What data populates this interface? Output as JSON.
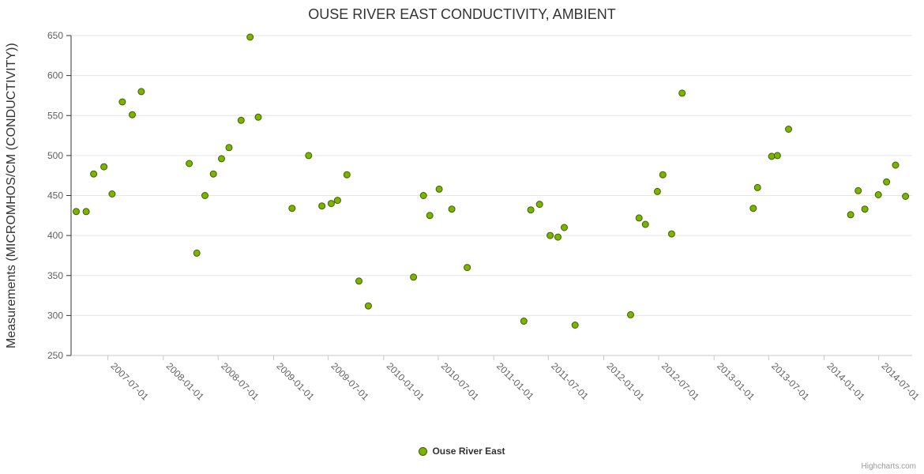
{
  "chart": {
    "title": "OUSE RIVER EAST CONDUCTIVITY, AMBIENT",
    "ylabel": "Measurements (MICROMHOS/CM (CONDUCTIVITY))",
    "legend_label": "Ouse River East",
    "credits": "Highcharts.com"
  },
  "chart_data": {
    "type": "scatter",
    "title": "OUSE RIVER EAST CONDUCTIVITY, AMBIENT",
    "xlabel": "",
    "ylabel": "Measurements (MICROMHOS/CM (CONDUCTIVITY))",
    "series_name": "Ouse River East",
    "legend_position": "bottom-center",
    "grid": true,
    "ylim": [
      250,
      650
    ],
    "y_ticks": [
      250,
      300,
      350,
      400,
      450,
      500,
      550,
      600,
      650
    ],
    "x_range": [
      "2007-03-01",
      "2014-10-20"
    ],
    "x_ticks": [
      "2007-07-01",
      "2008-01-01",
      "2008-07-01",
      "2009-01-01",
      "2009-07-01",
      "2010-01-01",
      "2010-07-01",
      "2011-01-01",
      "2011-07-01",
      "2012-01-01",
      "2012-07-01",
      "2013-01-01",
      "2013-07-01",
      "2014-01-01",
      "2014-07-01"
    ],
    "colors": {
      "marker": "#7cb300",
      "marker_stroke": "#3e6101",
      "grid": "#e6e6e6",
      "axis": "#333333",
      "axis_light": "#c8c8c8",
      "tick_label": "#606060",
      "title": "#333333"
    },
    "points": [
      [
        "2007-03-18",
        430
      ],
      [
        "2007-04-20",
        430
      ],
      [
        "2007-05-15",
        477
      ],
      [
        "2007-06-18",
        486
      ],
      [
        "2007-07-15",
        452
      ],
      [
        "2007-08-18",
        567
      ],
      [
        "2007-09-20",
        551
      ],
      [
        "2007-10-20",
        580
      ],
      [
        "2008-03-27",
        490
      ],
      [
        "2008-04-21",
        378
      ],
      [
        "2008-05-18",
        450
      ],
      [
        "2008-06-15",
        477
      ],
      [
        "2008-07-12",
        496
      ],
      [
        "2008-08-06",
        510
      ],
      [
        "2008-09-15",
        544
      ],
      [
        "2008-10-15",
        648
      ],
      [
        "2008-11-11",
        548
      ],
      [
        "2009-03-03",
        434
      ],
      [
        "2009-04-27",
        500
      ],
      [
        "2009-06-10",
        437
      ],
      [
        "2009-07-11",
        440
      ],
      [
        "2009-08-01",
        444
      ],
      [
        "2009-09-01",
        476
      ],
      [
        "2009-10-11",
        343
      ],
      [
        "2009-11-11",
        312
      ],
      [
        "2010-04-10",
        348
      ],
      [
        "2010-05-13",
        450
      ],
      [
        "2010-06-03",
        425
      ],
      [
        "2010-07-04",
        458
      ],
      [
        "2010-08-15",
        433
      ],
      [
        "2010-10-05",
        360
      ],
      [
        "2011-04-11",
        293
      ],
      [
        "2011-05-04",
        432
      ],
      [
        "2011-06-02",
        439
      ],
      [
        "2011-07-07",
        400
      ],
      [
        "2011-08-02",
        398
      ],
      [
        "2011-08-23",
        410
      ],
      [
        "2011-09-28",
        288
      ],
      [
        "2012-03-30",
        301
      ],
      [
        "2012-04-27",
        422
      ],
      [
        "2012-05-18",
        414
      ],
      [
        "2012-06-27",
        455
      ],
      [
        "2012-07-15",
        476
      ],
      [
        "2012-08-13",
        402
      ],
      [
        "2012-09-17",
        578
      ],
      [
        "2013-05-11",
        434
      ],
      [
        "2013-05-25",
        460
      ],
      [
        "2013-07-11",
        499
      ],
      [
        "2013-07-30",
        500
      ],
      [
        "2013-09-05",
        533
      ],
      [
        "2014-03-30",
        426
      ],
      [
        "2014-04-24",
        456
      ],
      [
        "2014-05-16",
        433
      ],
      [
        "2014-06-30",
        451
      ],
      [
        "2014-07-27",
        467
      ],
      [
        "2014-08-26",
        488
      ],
      [
        "2014-09-28",
        449
      ]
    ]
  }
}
